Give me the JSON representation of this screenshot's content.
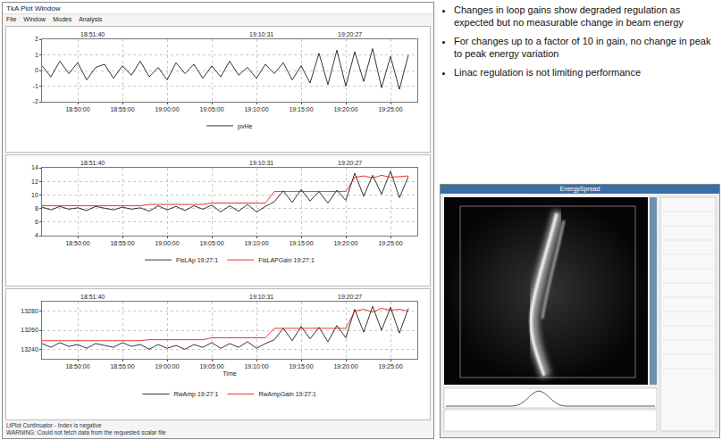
{
  "window": {
    "title": "TkA Plot Window",
    "menu": [
      "File",
      "Window",
      "Modes",
      "Analysis"
    ],
    "status": [
      "LtPlot Continuator - Index is negative",
      "WARNING: Could not fetch data from the requested scalar file"
    ]
  },
  "chart_data": [
    {
      "type": "line",
      "x": [
        1,
        2,
        3,
        4,
        5,
        6,
        7,
        8,
        9,
        10,
        11,
        12,
        13,
        14,
        15,
        16,
        17,
        18,
        19,
        20,
        21,
        22,
        23,
        24,
        25,
        26,
        27,
        28,
        29,
        30,
        31,
        32,
        33,
        34,
        35,
        36,
        37,
        38,
        39,
        40,
        41,
        42
      ],
      "xlim": [
        1,
        43
      ],
      "xticks": [
        {
          "value": 5,
          "label": "18:50:00"
        },
        {
          "value": 10,
          "label": "18:55:00"
        },
        {
          "value": 15,
          "label": "19:00:00"
        },
        {
          "value": 20,
          "label": "19:05:00"
        },
        {
          "value": 25,
          "label": "19:10:00"
        },
        {
          "value": 30,
          "label": "19:15:00"
        },
        {
          "value": 35,
          "label": "19:20:00"
        },
        {
          "value": 40,
          "label": "19:25:00"
        }
      ],
      "ylim": [
        -2,
        2
      ],
      "yticks": [
        -2,
        -1,
        0,
        1,
        2
      ],
      "grid": true,
      "legend": "bottom",
      "annotations": [
        {
          "x": 6.67,
          "text": "18:51:40"
        },
        {
          "x": 25.5,
          "text": "19:10:31"
        },
        {
          "x": 35.45,
          "text": "19:20:27"
        }
      ],
      "series": [
        {
          "name": "pvHe",
          "color": "#000000",
          "values": [
            0.3,
            -0.4,
            0.6,
            -0.2,
            0.5,
            -0.6,
            0.2,
            0.4,
            -0.5,
            0.3,
            -0.3,
            0.6,
            -0.4,
            0.2,
            -0.6,
            0.5,
            -0.2,
            0.4,
            -0.5,
            0.3,
            -0.4,
            0.6,
            -0.3,
            0.2,
            -0.5,
            0.4,
            -0.2,
            0.5,
            -0.6,
            0.3,
            -0.8,
            1.1,
            -0.9,
            1.3,
            -1.0,
            1.2,
            -0.7,
            1.4,
            -1.1,
            0.9,
            -1.2,
            1.0
          ]
        }
      ]
    },
    {
      "type": "line",
      "x": [
        1,
        2,
        3,
        4,
        5,
        6,
        7,
        8,
        9,
        10,
        11,
        12,
        13,
        14,
        15,
        16,
        17,
        18,
        19,
        20,
        21,
        22,
        23,
        24,
        25,
        26,
        27,
        28,
        29,
        30,
        31,
        32,
        33,
        34,
        35,
        36,
        37,
        38,
        39,
        40,
        41,
        42
      ],
      "xlim": [
        1,
        43
      ],
      "xticks": [
        {
          "value": 5,
          "label": "18:50:00"
        },
        {
          "value": 10,
          "label": "18:55:00"
        },
        {
          "value": 15,
          "label": "19:00:00"
        },
        {
          "value": 20,
          "label": "19:05:00"
        },
        {
          "value": 25,
          "label": "19:10:00"
        },
        {
          "value": 30,
          "label": "19:15:00"
        },
        {
          "value": 35,
          "label": "19:20:00"
        },
        {
          "value": 40,
          "label": "19:25:00"
        }
      ],
      "ylim": [
        4,
        14
      ],
      "yticks": [
        4,
        6,
        8,
        10,
        12,
        14
      ],
      "grid": true,
      "legend": "bottom",
      "annotations": [
        {
          "x": 6.67,
          "text": "18:51:40"
        },
        {
          "x": 25.5,
          "text": "19:10:31"
        },
        {
          "x": 35.45,
          "text": "19:20:27"
        }
      ],
      "series": [
        {
          "name": "FisLAp 19:27:1",
          "color": "#000000",
          "values": [
            8.2,
            7.8,
            8.3,
            7.9,
            8.1,
            7.7,
            8.3,
            8.0,
            7.8,
            8.2,
            7.9,
            8.1,
            7.6,
            8.4,
            7.8,
            8.3,
            7.7,
            8.4,
            7.9,
            8.5,
            7.5,
            8.4,
            7.6,
            8.6,
            7.5,
            8.3,
            9.0,
            10.6,
            8.9,
            10.8,
            9.1,
            10.5,
            8.8,
            10.7,
            9.2,
            13.2,
            9.8,
            12.9,
            10.1,
            13.5,
            9.6,
            12.7
          ]
        },
        {
          "name": "FisLAPGain 19:27:1",
          "color": "#e00000",
          "values": [
            8.4,
            8.4,
            8.4,
            8.4,
            8.4,
            8.4,
            8.4,
            8.4,
            8.4,
            8.4,
            8.4,
            8.4,
            8.6,
            8.6,
            8.6,
            8.6,
            8.6,
            8.6,
            8.6,
            8.8,
            8.8,
            8.8,
            8.8,
            8.8,
            8.8,
            8.8,
            10.5,
            10.5,
            10.5,
            10.5,
            10.5,
            10.5,
            10.5,
            10.5,
            10.5,
            12.6,
            12.8,
            12.5,
            12.9,
            12.6,
            12.7,
            12.8
          ]
        }
      ]
    },
    {
      "type": "line",
      "x": [
        1,
        2,
        3,
        4,
        5,
        6,
        7,
        8,
        9,
        10,
        11,
        12,
        13,
        14,
        15,
        16,
        17,
        18,
        19,
        20,
        21,
        22,
        23,
        24,
        25,
        26,
        27,
        28,
        29,
        30,
        31,
        32,
        33,
        34,
        35,
        36,
        37,
        38,
        39,
        40,
        41,
        42
      ],
      "xlim": [
        1,
        43
      ],
      "xticks": [
        {
          "value": 5,
          "label": "18:50:00"
        },
        {
          "value": 10,
          "label": "18:55:00"
        },
        {
          "value": 15,
          "label": "19:00:00"
        },
        {
          "value": 20,
          "label": "19:05:00"
        },
        {
          "value": 25,
          "label": "19:10:00"
        },
        {
          "value": 30,
          "label": "19:15:00"
        },
        {
          "value": 35,
          "label": "19:20:00"
        },
        {
          "value": 40,
          "label": "19:25:00"
        }
      ],
      "ylim": [
        13230,
        13290
      ],
      "yticks": [
        13240,
        13260,
        13280
      ],
      "grid": true,
      "legend": "bottom",
      "x_label": "Time",
      "annotations": [
        {
          "x": 6.67,
          "text": "18:51:40"
        },
        {
          "x": 25.5,
          "text": "19:10:31"
        },
        {
          "x": 35.45,
          "text": "19:20:27"
        }
      ],
      "series": [
        {
          "name": "RwAmp 19:27:1",
          "color": "#000000",
          "values": [
            13246,
            13242,
            13247,
            13243,
            13245,
            13241,
            13246,
            13244,
            13242,
            13247,
            13243,
            13245,
            13240,
            13245,
            13241,
            13244,
            13240,
            13245,
            13242,
            13247,
            13241,
            13246,
            13242,
            13248,
            13241,
            13246,
            13250,
            13262,
            13249,
            13264,
            13251,
            13263,
            13248,
            13265,
            13252,
            13282,
            13258,
            13285,
            13260,
            13284,
            13257,
            13283
          ]
        },
        {
          "name": "RwAmpGain 19:27:1",
          "color": "#e00000",
          "values": [
            13249,
            13249,
            13249,
            13249,
            13249,
            13249,
            13249,
            13249,
            13249,
            13249,
            13249,
            13249,
            13250,
            13250,
            13250,
            13250,
            13250,
            13250,
            13250,
            13252,
            13252,
            13252,
            13252,
            13252,
            13252,
            13252,
            13262,
            13262,
            13262,
            13262,
            13262,
            13262,
            13262,
            13262,
            13262,
            13280,
            13282,
            13279,
            13283,
            13281,
            13282,
            13280
          ]
        }
      ]
    }
  ],
  "bullets": [
    "Changes in loop gains show degraded regulation as expected but no measurable change in beam energy",
    "For changes up to a factor of 10 in gain, no change in peak to peak energy variation",
    "Linac regulation is not limiting performance"
  ],
  "image_window": {
    "title": "EnergySpread"
  }
}
